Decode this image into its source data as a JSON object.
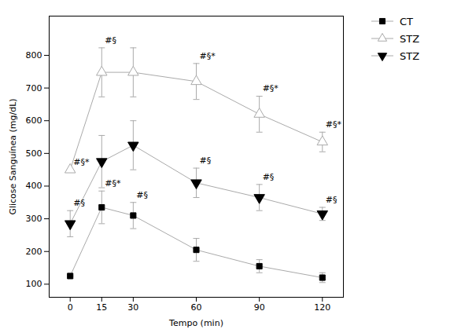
{
  "chart_data": {
    "type": "line",
    "xlabel": "Tempo (min)",
    "ylabel": "Glicose Sanguínea (mg/dL)",
    "x": [
      0,
      15,
      30,
      60,
      90,
      120
    ],
    "xlim": [
      -10,
      130
    ],
    "xticks": [
      0,
      15,
      30,
      60,
      90,
      120
    ],
    "ylim": [
      60,
      920
    ],
    "yticks": [
      100,
      200,
      300,
      400,
      500,
      600,
      700,
      800
    ],
    "grid": false,
    "legend": "right",
    "color": "#000000",
    "series": [
      {
        "name": "CT",
        "color": "#aaaaaa",
        "marker": "square",
        "values": [
          125,
          335,
          310,
          205,
          155,
          120
        ],
        "errors": [
          0,
          50,
          40,
          35,
          20,
          15
        ],
        "annotations": [
          {
            "x": 15,
            "text": "#§*"
          },
          {
            "x": 30,
            "text": "#§"
          }
        ]
      },
      {
        "name": "STZ",
        "color": "#aaaaaa",
        "marker": "triangle-up-open",
        "values": [
          450,
          748,
          748,
          720,
          620,
          535
        ],
        "errors": [
          0,
          75,
          75,
          55,
          55,
          30
        ],
        "annotations": [
          {
            "x": 0,
            "text": "#§*"
          },
          {
            "x": 15,
            "text": "#§"
          },
          {
            "x": 60,
            "text": "#§*"
          },
          {
            "x": 90,
            "text": "#§*"
          },
          {
            "x": 120,
            "text": "#§*"
          }
        ]
      },
      {
        "name": "STZ",
        "color": "#aaaaaa",
        "marker": "triangle-down",
        "values": [
          285,
          475,
          525,
          410,
          365,
          315
        ],
        "errors": [
          40,
          80,
          75,
          45,
          40,
          20
        ],
        "annotations": [
          {
            "x": 0,
            "text": "#§"
          },
          {
            "x": 60,
            "text": "#§"
          },
          {
            "x": 90,
            "text": "#§"
          },
          {
            "x": 120,
            "text": "#§"
          }
        ]
      }
    ]
  }
}
